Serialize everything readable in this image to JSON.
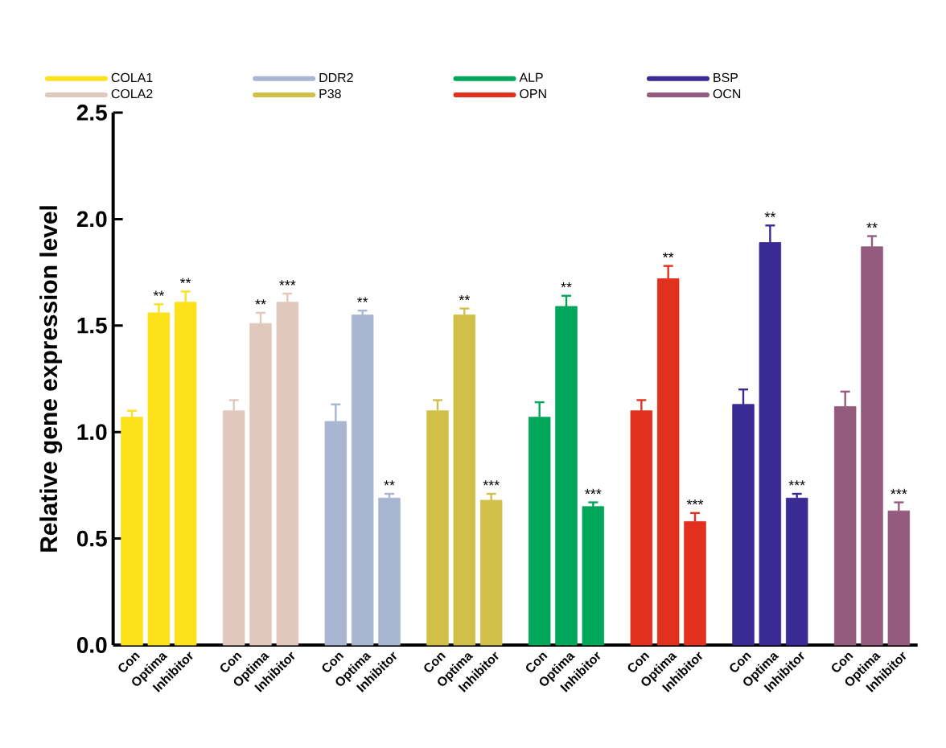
{
  "chart_data": {
    "type": "bar",
    "ylabel": "Relative gene expression level",
    "categories": [
      "Con",
      "Optima",
      "Inhibitor",
      "Con",
      "Optima",
      "Inhibitor",
      "Con",
      "Optima",
      "Inhibitor",
      "Con",
      "Optima",
      "Inhibitor",
      "Con",
      "Optima",
      "Inhibitor",
      "Con",
      "Optima",
      "Inhibitor",
      "Con",
      "Optima",
      "Inhibitor",
      "Con",
      "Optima",
      "Inhibitor"
    ],
    "ylim": [
      0,
      2.5
    ],
    "yticks": [
      {
        "value": 0,
        "label": "0.0"
      },
      {
        "value": 0.5,
        "label": "0.5"
      },
      {
        "value": 1,
        "label": "1.0"
      },
      {
        "value": 1.5,
        "label": "1.5"
      },
      {
        "value": 2,
        "label": "2.0"
      },
      {
        "value": 2.5,
        "label": "2.5"
      }
    ],
    "legend": "top",
    "grid": false,
    "series": [
      {
        "name": "COLA1",
        "color": "#fde11a",
        "values": [
          1.07,
          1.56,
          1.61,
          null,
          null,
          null,
          null,
          null,
          null,
          null,
          null,
          null,
          null,
          null,
          null,
          null,
          null,
          null,
          null,
          null,
          null,
          null,
          null,
          null
        ],
        "errors": [
          0.03,
          0.04,
          0.05,
          null,
          null,
          null,
          null,
          null,
          null,
          null,
          null,
          null,
          null,
          null,
          null,
          null,
          null,
          null,
          null,
          null,
          null,
          null,
          null,
          null
        ],
        "value_labels": [
          null,
          "**",
          "**",
          null,
          null,
          null,
          null,
          null,
          null,
          null,
          null,
          null,
          null,
          null,
          null,
          null,
          null,
          null,
          null,
          null,
          null,
          null,
          null,
          null
        ]
      },
      {
        "name": "COLA2",
        "color": "#e1c8bc",
        "values": [
          null,
          null,
          null,
          1.1,
          1.51,
          1.61,
          null,
          null,
          null,
          null,
          null,
          null,
          null,
          null,
          null,
          null,
          null,
          null,
          null,
          null,
          null,
          null,
          null,
          null
        ],
        "errors": [
          null,
          null,
          null,
          0.05,
          0.05,
          0.04,
          null,
          null,
          null,
          null,
          null,
          null,
          null,
          null,
          null,
          null,
          null,
          null,
          null,
          null,
          null,
          null,
          null,
          null
        ],
        "value_labels": [
          null,
          null,
          null,
          null,
          "**",
          "***",
          null,
          null,
          null,
          null,
          null,
          null,
          null,
          null,
          null,
          null,
          null,
          null,
          null,
          null,
          null,
          null,
          null,
          null
        ]
      },
      {
        "name": "DDR2",
        "color": "#a9b6d2",
        "values": [
          null,
          null,
          null,
          null,
          null,
          null,
          1.05,
          1.55,
          0.69,
          null,
          null,
          null,
          null,
          null,
          null,
          null,
          null,
          null,
          null,
          null,
          null,
          null,
          null,
          null
        ],
        "errors": [
          null,
          null,
          null,
          null,
          null,
          null,
          0.08,
          0.02,
          0.02,
          null,
          null,
          null,
          null,
          null,
          null,
          null,
          null,
          null,
          null,
          null,
          null,
          null,
          null,
          null
        ],
        "value_labels": [
          null,
          null,
          null,
          null,
          null,
          null,
          null,
          "**",
          "**",
          null,
          null,
          null,
          null,
          null,
          null,
          null,
          null,
          null,
          null,
          null,
          null,
          null,
          null,
          null
        ]
      },
      {
        "name": "P38",
        "color": "#d0c04a",
        "values": [
          null,
          null,
          null,
          null,
          null,
          null,
          null,
          null,
          null,
          1.1,
          1.55,
          0.68,
          null,
          null,
          null,
          null,
          null,
          null,
          null,
          null,
          null,
          null,
          null,
          null
        ],
        "errors": [
          null,
          null,
          null,
          null,
          null,
          null,
          null,
          null,
          null,
          0.05,
          0.03,
          0.03,
          null,
          null,
          null,
          null,
          null,
          null,
          null,
          null,
          null,
          null,
          null,
          null
        ],
        "value_labels": [
          null,
          null,
          null,
          null,
          null,
          null,
          null,
          null,
          null,
          null,
          "**",
          "***",
          null,
          null,
          null,
          null,
          null,
          null,
          null,
          null,
          null,
          null,
          null,
          null
        ]
      },
      {
        "name": "ALP",
        "color": "#00a65a",
        "values": [
          null,
          null,
          null,
          null,
          null,
          null,
          null,
          null,
          null,
          null,
          null,
          null,
          1.07,
          1.59,
          0.65,
          null,
          null,
          null,
          null,
          null,
          null,
          null,
          null,
          null
        ],
        "errors": [
          null,
          null,
          null,
          null,
          null,
          null,
          null,
          null,
          null,
          null,
          null,
          null,
          0.07,
          0.05,
          0.02,
          null,
          null,
          null,
          null,
          null,
          null,
          null,
          null,
          null
        ],
        "value_labels": [
          null,
          null,
          null,
          null,
          null,
          null,
          null,
          null,
          null,
          null,
          null,
          null,
          null,
          "**",
          "***",
          null,
          null,
          null,
          null,
          null,
          null,
          null,
          null,
          null
        ]
      },
      {
        "name": "OPN",
        "color": "#e2301f",
        "values": [
          null,
          null,
          null,
          null,
          null,
          null,
          null,
          null,
          null,
          null,
          null,
          null,
          null,
          null,
          null,
          1.1,
          1.72,
          0.58,
          null,
          null,
          null,
          null,
          null,
          null
        ],
        "errors": [
          null,
          null,
          null,
          null,
          null,
          null,
          null,
          null,
          null,
          null,
          null,
          null,
          null,
          null,
          null,
          0.05,
          0.06,
          0.04,
          null,
          null,
          null,
          null,
          null,
          null
        ],
        "value_labels": [
          null,
          null,
          null,
          null,
          null,
          null,
          null,
          null,
          null,
          null,
          null,
          null,
          null,
          null,
          null,
          null,
          "**",
          "***",
          null,
          null,
          null,
          null,
          null,
          null
        ]
      },
      {
        "name": "BSP",
        "color": "#3a2a94",
        "values": [
          null,
          null,
          null,
          null,
          null,
          null,
          null,
          null,
          null,
          null,
          null,
          null,
          null,
          null,
          null,
          null,
          null,
          null,
          1.13,
          1.89,
          0.69,
          null,
          null,
          null
        ],
        "errors": [
          null,
          null,
          null,
          null,
          null,
          null,
          null,
          null,
          null,
          null,
          null,
          null,
          null,
          null,
          null,
          null,
          null,
          null,
          0.07,
          0.08,
          0.02,
          null,
          null,
          null
        ],
        "value_labels": [
          null,
          null,
          null,
          null,
          null,
          null,
          null,
          null,
          null,
          null,
          null,
          null,
          null,
          null,
          null,
          null,
          null,
          null,
          null,
          "**",
          "***",
          null,
          null,
          null
        ]
      },
      {
        "name": "OCN",
        "color": "#955b7e",
        "values": [
          null,
          null,
          null,
          null,
          null,
          null,
          null,
          null,
          null,
          null,
          null,
          null,
          null,
          null,
          null,
          null,
          null,
          null,
          null,
          null,
          null,
          1.12,
          1.87,
          0.63
        ],
        "errors": [
          null,
          null,
          null,
          null,
          null,
          null,
          null,
          null,
          null,
          null,
          null,
          null,
          null,
          null,
          null,
          null,
          null,
          null,
          null,
          null,
          null,
          0.07,
          0.05,
          0.04
        ],
        "value_labels": [
          null,
          null,
          null,
          null,
          null,
          null,
          null,
          null,
          null,
          null,
          null,
          null,
          null,
          null,
          null,
          null,
          null,
          null,
          null,
          null,
          null,
          null,
          "**",
          "***"
        ]
      }
    ]
  }
}
